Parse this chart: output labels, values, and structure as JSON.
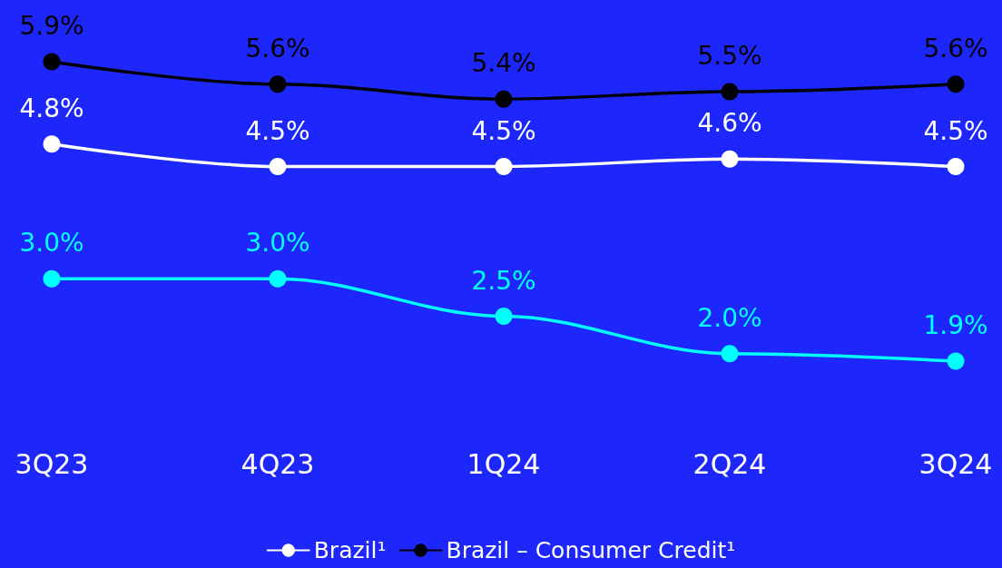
{
  "chart_data": {
    "type": "line",
    "categories": [
      "3Q23",
      "4Q23",
      "1Q24",
      "2Q24",
      "3Q24"
    ],
    "series": [
      {
        "color": "#00ffff",
        "values": [
          3.0,
          3.0,
          2.5,
          2.0,
          1.9
        ],
        "value_labels": [
          "3.0%",
          "3.0%",
          "2.5%",
          "2.0%",
          "1.9%"
        ]
      },
      {
        "name": "Brazil¹",
        "color": "#ffffff",
        "values": [
          4.8,
          4.5,
          4.5,
          4.6,
          4.5
        ],
        "value_labels": [
          "4.8%",
          "4.5%",
          "4.5%",
          "4.6%",
          "4.5%"
        ]
      },
      {
        "name": "Brazil – Consumer Credit¹",
        "color": "#000000",
        "values": [
          5.9,
          5.6,
          5.4,
          5.5,
          5.6
        ],
        "value_labels": [
          "5.9%",
          "5.6%",
          "5.4%",
          "5.5%",
          "5.6%"
        ]
      }
    ],
    "legend": "bottom",
    "marker": "circle",
    "line_style": "solid",
    "tick_labels": "x"
  }
}
